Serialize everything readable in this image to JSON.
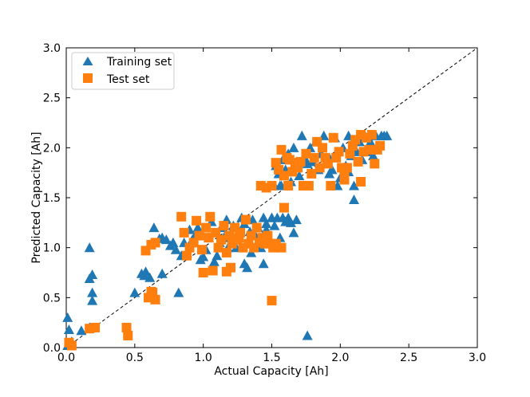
{
  "chart_data": {
    "type": "scatter",
    "title": "",
    "xlabel": "Actual Capacity [Ah]",
    "ylabel": "Predicted Capacity [Ah]",
    "xlim": [
      0.0,
      3.0
    ],
    "ylim": [
      0.0,
      3.0
    ],
    "xticks": [
      "0.0",
      "0.5",
      "1.0",
      "1.5",
      "2.0",
      "2.5",
      "3.0"
    ],
    "yticks": [
      "0.0",
      "0.5",
      "1.0",
      "1.5",
      "2.0",
      "2.5",
      "3.0"
    ],
    "grid": false,
    "legend_position": "top-left",
    "reference_line": {
      "style": "dashed",
      "color": "#000000",
      "from": [
        0,
        0
      ],
      "to": [
        3,
        3
      ]
    },
    "series": [
      {
        "name": "Training set",
        "marker": "triangle",
        "color": "#1f77b4",
        "points": [
          [
            0.01,
            0.3
          ],
          [
            0.02,
            0.18
          ],
          [
            0.04,
            0.06
          ],
          [
            0.01,
            0.02
          ],
          [
            0.11,
            0.17
          ],
          [
            0.17,
            1.0
          ],
          [
            0.17,
            0.69
          ],
          [
            0.19,
            0.73
          ],
          [
            0.19,
            0.55
          ],
          [
            0.19,
            0.47
          ],
          [
            0.17,
            0.2
          ],
          [
            0.5,
            0.55
          ],
          [
            0.55,
            0.74
          ],
          [
            0.57,
            0.72
          ],
          [
            0.58,
            0.76
          ],
          [
            0.61,
            0.7
          ],
          [
            0.63,
            0.52
          ],
          [
            0.65,
            0.48
          ],
          [
            0.7,
            0.74
          ],
          [
            0.64,
            1.2
          ],
          [
            0.68,
            1.09
          ],
          [
            0.7,
            1.1
          ],
          [
            0.73,
            1.08
          ],
          [
            0.76,
            1.02
          ],
          [
            0.78,
            1.05
          ],
          [
            0.8,
            0.98
          ],
          [
            0.82,
            0.55
          ],
          [
            0.84,
            0.92
          ],
          [
            0.86,
            1.05
          ],
          [
            0.88,
            0.95
          ],
          [
            0.9,
            1.18
          ],
          [
            0.92,
            1.08
          ],
          [
            0.94,
            1.12
          ],
          [
            0.96,
            1.2
          ],
          [
            0.98,
            0.88
          ],
          [
            1.0,
            0.91
          ],
          [
            1.02,
            0.98
          ],
          [
            1.04,
            1.1
          ],
          [
            1.06,
            1.26
          ],
          [
            1.08,
            0.86
          ],
          [
            1.1,
            0.92
          ],
          [
            1.12,
            1.05
          ],
          [
            1.13,
            1.2
          ],
          [
            1.15,
            1.1
          ],
          [
            1.17,
            1.28
          ],
          [
            1.18,
            1.0
          ],
          [
            1.2,
            1.14
          ],
          [
            1.22,
            1.22
          ],
          [
            1.24,
            1.0
          ],
          [
            1.26,
            1.1
          ],
          [
            1.28,
            1.3
          ],
          [
            1.3,
            1.24
          ],
          [
            1.32,
            1.05
          ],
          [
            1.34,
            1.16
          ],
          [
            1.35,
            0.95
          ],
          [
            1.36,
            1.28
          ],
          [
            1.38,
            1.12
          ],
          [
            1.4,
            1.2
          ],
          [
            1.42,
            1.0
          ],
          [
            1.44,
            1.3
          ],
          [
            1.46,
            1.18
          ],
          [
            1.48,
            1.1
          ],
          [
            1.5,
            1.3
          ],
          [
            1.52,
            1.22
          ],
          [
            1.54,
            1.3
          ],
          [
            1.56,
            1.1
          ],
          [
            1.58,
            1.3
          ],
          [
            1.6,
            1.26
          ],
          [
            1.62,
            1.3
          ],
          [
            1.64,
            1.25
          ],
          [
            1.66,
            1.15
          ],
          [
            1.68,
            1.28
          ],
          [
            1.3,
            0.84
          ],
          [
            1.32,
            0.8
          ],
          [
            1.44,
            0.84
          ],
          [
            1.5,
            1.3
          ],
          [
            1.52,
            1.62
          ],
          [
            1.53,
            1.82
          ],
          [
            1.55,
            1.74
          ],
          [
            1.57,
            1.62
          ],
          [
            1.58,
            1.88
          ],
          [
            1.6,
            1.78
          ],
          [
            1.62,
            1.94
          ],
          [
            1.64,
            1.66
          ],
          [
            1.66,
            2.0
          ],
          [
            1.68,
            1.86
          ],
          [
            1.7,
            1.72
          ],
          [
            1.72,
            2.12
          ],
          [
            1.74,
            1.9
          ],
          [
            1.76,
            1.84
          ],
          [
            1.78,
            2.0
          ],
          [
            1.8,
            1.86
          ],
          [
            1.82,
            2.06
          ],
          [
            1.84,
            1.78
          ],
          [
            1.86,
            1.94
          ],
          [
            1.88,
            2.12
          ],
          [
            1.9,
            1.84
          ],
          [
            1.92,
            1.9
          ],
          [
            1.94,
            1.78
          ],
          [
            1.96,
            2.1
          ],
          [
            1.98,
            1.96
          ],
          [
            2.0,
            1.7
          ],
          [
            2.02,
            2.0
          ],
          [
            2.04,
            1.82
          ],
          [
            2.06,
            2.12
          ],
          [
            2.08,
            1.92
          ],
          [
            2.1,
            1.62
          ],
          [
            2.12,
            1.96
          ],
          [
            2.14,
            2.06
          ],
          [
            2.16,
            1.88
          ],
          [
            2.18,
            2.12
          ],
          [
            2.2,
            1.96
          ],
          [
            2.22,
            2.06
          ],
          [
            2.24,
            1.92
          ],
          [
            2.26,
            2.12
          ],
          [
            2.28,
            2.02
          ],
          [
            2.3,
            2.12
          ],
          [
            2.32,
            2.12
          ],
          [
            2.34,
            2.12
          ],
          [
            2.1,
            1.48
          ],
          [
            1.76,
            0.12
          ],
          [
            1.92,
            1.74
          ],
          [
            1.98,
            1.62
          ],
          [
            2.06,
            1.76
          ],
          [
            1.56,
            1.62
          ],
          [
            1.46,
            1.24
          ]
        ]
      },
      {
        "name": "Test set",
        "marker": "square",
        "color": "#ff7f0e",
        "points": [
          [
            0.02,
            0.05
          ],
          [
            0.04,
            0.02
          ],
          [
            0.17,
            0.19
          ],
          [
            0.21,
            0.2
          ],
          [
            0.44,
            0.2
          ],
          [
            0.45,
            0.12
          ],
          [
            0.58,
            0.97
          ],
          [
            0.62,
            1.03
          ],
          [
            0.65,
            1.05
          ],
          [
            0.6,
            0.5
          ],
          [
            0.63,
            0.55
          ],
          [
            0.65,
            0.48
          ],
          [
            0.62,
            0.56
          ],
          [
            0.84,
            1.31
          ],
          [
            0.86,
            1.15
          ],
          [
            0.88,
            0.92
          ],
          [
            0.9,
            1.0
          ],
          [
            0.93,
            1.05
          ],
          [
            0.95,
            1.27
          ],
          [
            0.97,
            1.12
          ],
          [
            0.99,
            0.98
          ],
          [
            1.0,
            0.75
          ],
          [
            1.02,
            1.2
          ],
          [
            1.04,
            1.1
          ],
          [
            1.05,
            1.31
          ],
          [
            1.07,
            0.77
          ],
          [
            1.09,
            1.15
          ],
          [
            1.11,
            1.0
          ],
          [
            1.13,
            1.08
          ],
          [
            1.15,
            1.22
          ],
          [
            1.17,
            0.95
          ],
          [
            1.19,
            1.12
          ],
          [
            1.21,
            1.04
          ],
          [
            1.23,
            1.2
          ],
          [
            1.25,
            1.08
          ],
          [
            1.27,
            1.15
          ],
          [
            1.29,
            1.0
          ],
          [
            1.31,
            1.28
          ],
          [
            1.33,
            1.04
          ],
          [
            1.35,
            1.12
          ],
          [
            1.37,
            1.0
          ],
          [
            1.39,
            1.2
          ],
          [
            1.41,
            1.05
          ],
          [
            1.43,
            1.1
          ],
          [
            1.45,
            1.04
          ],
          [
            1.47,
            1.12
          ],
          [
            1.49,
            1.04
          ],
          [
            1.51,
            1.0
          ],
          [
            1.53,
            1.04
          ],
          [
            1.57,
            1.0
          ],
          [
            1.17,
            0.76
          ],
          [
            1.5,
            0.47
          ],
          [
            1.42,
            1.62
          ],
          [
            1.46,
            1.6
          ],
          [
            1.5,
            1.62
          ],
          [
            1.53,
            1.85
          ],
          [
            1.55,
            1.78
          ],
          [
            1.57,
            1.98
          ],
          [
            1.59,
            1.72
          ],
          [
            1.61,
            1.9
          ],
          [
            1.63,
            1.88
          ],
          [
            1.65,
            1.76
          ],
          [
            1.67,
            1.85
          ],
          [
            1.69,
            1.8
          ],
          [
            1.71,
            1.86
          ],
          [
            1.73,
            1.62
          ],
          [
            1.75,
            1.94
          ],
          [
            1.77,
            1.62
          ],
          [
            1.79,
            1.74
          ],
          [
            1.81,
            1.9
          ],
          [
            1.83,
            2.06
          ],
          [
            1.85,
            1.8
          ],
          [
            1.87,
            2.0
          ],
          [
            1.89,
            1.9
          ],
          [
            1.91,
            1.84
          ],
          [
            1.93,
            1.62
          ],
          [
            1.95,
            2.1
          ],
          [
            1.97,
            1.9
          ],
          [
            1.99,
            1.96
          ],
          [
            2.01,
            1.8
          ],
          [
            2.03,
            1.72
          ],
          [
            2.05,
            1.8
          ],
          [
            2.07,
            1.94
          ],
          [
            2.09,
            2.02
          ],
          [
            2.11,
            2.08
          ],
          [
            2.13,
            1.86
          ],
          [
            2.15,
            2.13
          ],
          [
            2.17,
            1.96
          ],
          [
            2.19,
            2.1
          ],
          [
            2.21,
            1.98
          ],
          [
            2.23,
            2.13
          ],
          [
            2.25,
            1.84
          ],
          [
            2.27,
            1.98
          ],
          [
            2.29,
            2.02
          ],
          [
            2.15,
            1.66
          ],
          [
            2.03,
            1.68
          ],
          [
            1.62,
            1.62
          ],
          [
            1.59,
            1.4
          ],
          [
            1.26,
            1.1
          ],
          [
            1.2,
            0.8
          ]
        ]
      }
    ]
  }
}
